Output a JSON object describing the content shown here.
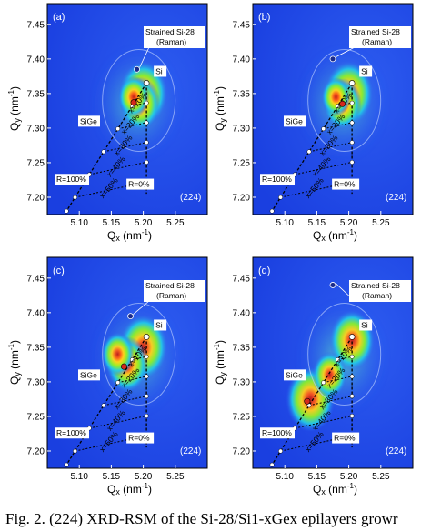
{
  "caption": "Fig. 2. (224) XRD-RSM of the Si-28/Si1-xGex epilayers growr",
  "colors": {
    "background": "#1a3fe0",
    "si_peak": "#d4281c",
    "contour": "#c8d8ff",
    "marker": "#1a2a8a"
  },
  "chart_data": [
    {
      "type": "heatmap",
      "panel": "(a)",
      "reflection": "(224)",
      "xlabel": "Qx (nm⁻¹)",
      "ylabel": "Qy (nm⁻¹)",
      "xlim": [
        5.05,
        5.3
      ],
      "ylim": [
        7.175,
        7.48
      ],
      "xticks": [
        "5.10",
        "5.15",
        "5.20",
        "5.25"
      ],
      "yticks": [
        "7.20",
        "7.25",
        "7.30",
        "7.35",
        "7.40",
        "7.45"
      ],
      "labels": {
        "si": "Si",
        "sige": "SiGe",
        "strained": "Strained Si-28",
        "raman": "(Raman)",
        "r100": "R=100%",
        "r0": "R=0%"
      },
      "si_peak": [
        5.205,
        7.365
      ],
      "strained_point": [
        5.19,
        7.385
      ],
      "sige_peak": [
        5.185,
        7.337
      ],
      "hotspots": [
        [
          5.2,
          7.35,
          1.0
        ],
        [
          5.195,
          7.335,
          0.75
        ],
        [
          5.185,
          7.345,
          0.5
        ]
      ],
      "relaxation_line": [
        [
          5.205,
          7.365
        ],
        [
          5.08,
          7.18
        ]
      ],
      "strained_line": [
        [
          5.205,
          7.365
        ],
        [
          5.205,
          7.205
        ]
      ],
      "percentages": [
        "10%",
        "20%",
        "30%",
        "40%",
        "50%"
      ]
    },
    {
      "type": "heatmap",
      "panel": "(b)",
      "reflection": "(224)",
      "xlabel": "Qx (nm⁻¹)",
      "ylabel": "Qy (nm⁻¹)",
      "xlim": [
        5.05,
        5.3
      ],
      "ylim": [
        7.175,
        7.48
      ],
      "xticks": [
        "5.10",
        "5.15",
        "5.20",
        "5.25"
      ],
      "yticks": [
        "7.20",
        "7.25",
        "7.30",
        "7.35",
        "7.40",
        "7.45"
      ],
      "labels": {
        "si": "Si",
        "sige": "SiGe",
        "strained": "Strained Si-28",
        "raman": "(Raman)",
        "r100": "R=100%",
        "r0": "R=0%"
      },
      "si_peak": [
        5.205,
        7.365
      ],
      "strained_point": [
        5.175,
        7.4
      ],
      "sige_peak": [
        5.19,
        7.335
      ],
      "hotspots": [
        [
          5.2,
          7.35,
          1.0
        ],
        [
          5.19,
          7.335,
          0.7
        ],
        [
          5.18,
          7.345,
          0.45
        ]
      ],
      "relaxation_line": [
        [
          5.205,
          7.365
        ],
        [
          5.08,
          7.18
        ]
      ],
      "strained_line": [
        [
          5.205,
          7.365
        ],
        [
          5.205,
          7.205
        ]
      ],
      "percentages": [
        "10%",
        "20%",
        "30%",
        "40%",
        "50%"
      ]
    },
    {
      "type": "heatmap",
      "panel": "(c)",
      "reflection": "(224)",
      "xlabel": "Qx (nm⁻¹)",
      "ylabel": "Qy (nm⁻¹)",
      "xlim": [
        5.05,
        5.3
      ],
      "ylim": [
        7.175,
        7.48
      ],
      "xticks": [
        "5.10",
        "5.15",
        "5.20",
        "5.25"
      ],
      "yticks": [
        "7.20",
        "7.25",
        "7.30",
        "7.35",
        "7.40",
        "7.45"
      ],
      "labels": {
        "si": "Si",
        "sige": "SiGe",
        "strained": "Strained Si-28",
        "raman": "(Raman)",
        "r100": "R=100%",
        "r0": "R=0%"
      },
      "si_peak": [
        5.205,
        7.365
      ],
      "strained_point": [
        5.18,
        7.395
      ],
      "sige_peak": [
        5.17,
        7.322
      ],
      "hotspots": [
        [
          5.2,
          7.35,
          1.0
        ],
        [
          5.175,
          7.325,
          0.8
        ],
        [
          5.16,
          7.34,
          0.55
        ]
      ],
      "relaxation_line": [
        [
          5.205,
          7.365
        ],
        [
          5.08,
          7.18
        ]
      ],
      "strained_line": [
        [
          5.205,
          7.365
        ],
        [
          5.205,
          7.205
        ]
      ],
      "percentages": [
        "10%",
        "20%",
        "30%",
        "40%",
        "50%"
      ]
    },
    {
      "type": "heatmap",
      "panel": "(d)",
      "reflection": "(224)",
      "xlabel": "Qx (nm⁻¹)",
      "ylabel": "Qy (nm⁻¹)",
      "xlim": [
        5.05,
        5.3
      ],
      "ylim": [
        7.175,
        7.48
      ],
      "xticks": [
        "5.10",
        "5.15",
        "5.20",
        "5.25"
      ],
      "yticks": [
        "7.20",
        "7.25",
        "7.30",
        "7.35",
        "7.40",
        "7.45"
      ],
      "labels": {
        "si": "Si",
        "sige": "SiGe",
        "strained": "Strained Si-28",
        "raman": "(Raman)",
        "r100": "R=100%",
        "r0": "R=0%"
      },
      "si_peak": [
        5.205,
        7.365
      ],
      "strained_point": [
        5.175,
        7.44
      ],
      "sige_peak": [
        5.135,
        7.272
      ],
      "hotspots": [
        [
          5.205,
          7.36,
          0.9
        ],
        [
          5.14,
          7.275,
          1.0
        ],
        [
          5.17,
          7.31,
          0.6
        ]
      ],
      "relaxation_line": [
        [
          5.205,
          7.365
        ],
        [
          5.08,
          7.18
        ]
      ],
      "strained_line": [
        [
          5.205,
          7.365
        ],
        [
          5.205,
          7.205
        ]
      ],
      "percentages": [
        "10%",
        "20%",
        "30%",
        "40%",
        "50%"
      ]
    }
  ]
}
